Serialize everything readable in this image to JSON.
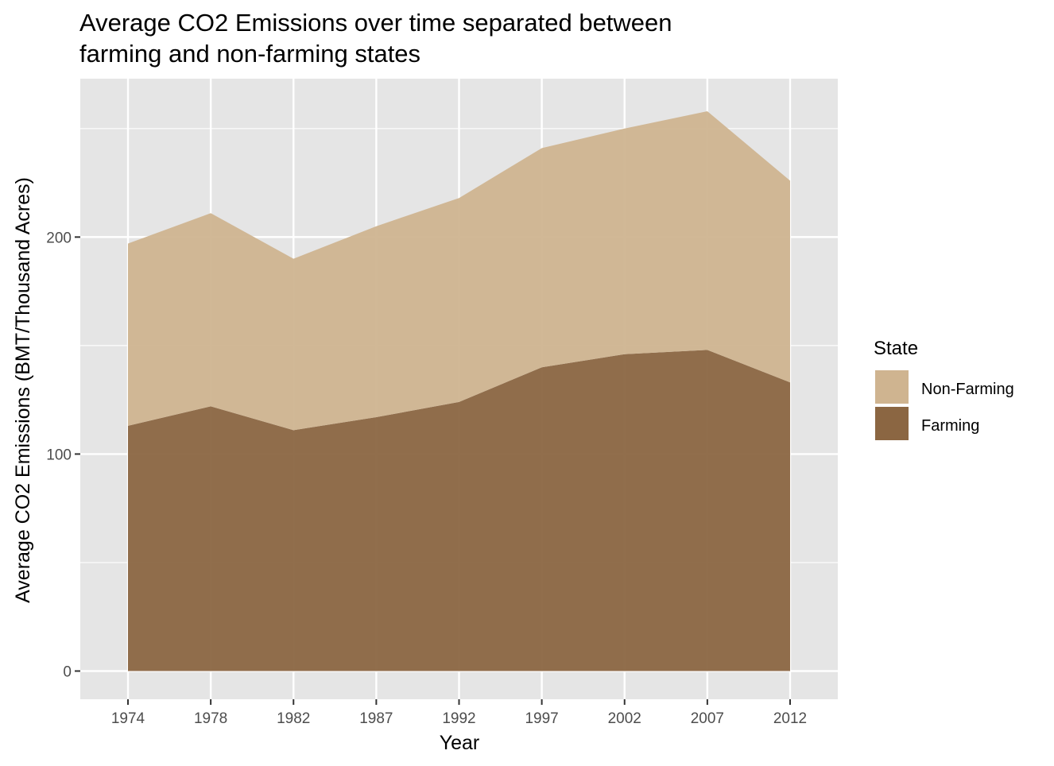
{
  "chart_data": {
    "type": "area",
    "stacked": true,
    "title_lines": [
      "Average CO2 Emissions over time separated between",
      "farming and non-farming states"
    ],
    "xlabel": "Year",
    "ylabel": "Average CO2 Emissions (BMT/Thousand Acres)",
    "x": [
      "1974",
      "1978",
      "1982",
      "1987",
      "1992",
      "1997",
      "2002",
      "2007",
      "2012"
    ],
    "yticks": [
      0,
      100,
      200
    ],
    "ylim": [
      -13,
      273
    ],
    "grid": true,
    "legend": {
      "title": "State",
      "position": "right",
      "entries": [
        "Non-Farming",
        "Farming"
      ]
    },
    "series": [
      {
        "name": "Farming",
        "color": "#8b6642",
        "values": [
          113,
          122,
          111,
          117,
          124,
          140,
          146,
          148,
          133
        ]
      },
      {
        "name": "Non-Farming",
        "color": "#cfb490",
        "values": [
          84,
          89,
          79,
          88,
          94,
          101,
          104,
          110,
          93
        ]
      }
    ],
    "colors": {
      "panel_background": "#e5e5e5",
      "grid": "#ffffff"
    }
  }
}
